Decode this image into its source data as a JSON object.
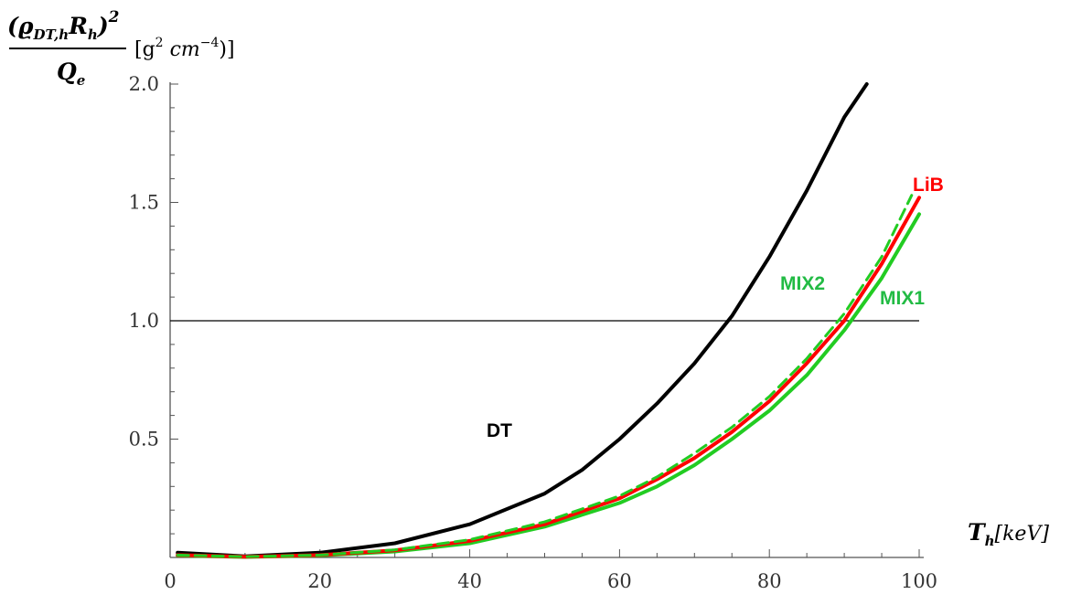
{
  "chart_data": {
    "type": "line",
    "xlabel": {
      "T": "T",
      "sub": "h",
      "unit": "[keV]"
    },
    "ylabel": {
      "rho": "(ϱ",
      "rho_sub": "DT,h",
      "R": "R",
      "R_sub": "h",
      "close": ")",
      "power": "2",
      "denom": "Q",
      "denom_sub": "e",
      "unit_open": "[g",
      "unit_pow": "2",
      "unit_mid": " cm",
      "unit_pow2": "−4",
      "unit_close": ")]"
    },
    "xlim": [
      0,
      100
    ],
    "ylim": [
      0,
      2.0
    ],
    "x_ticks": [
      0,
      20,
      40,
      60,
      80,
      100
    ],
    "x_tick_labels": [
      "0",
      "20",
      "40",
      "60",
      "80",
      "100"
    ],
    "y_ticks": [
      0.5,
      1.0,
      1.5,
      2.0
    ],
    "y_tick_labels": [
      "0.5",
      "1.0",
      "1.5",
      "2.0"
    ],
    "reference_line": {
      "y": 1.0,
      "x_range": [
        0,
        100
      ]
    },
    "series": [
      {
        "name": "DT",
        "color": "#000000",
        "dashed": false,
        "x": [
          1,
          10,
          20,
          30,
          40,
          50,
          55,
          60,
          65,
          70,
          75,
          80,
          85,
          90,
          93
        ],
        "y": [
          0.02,
          0.005,
          0.02,
          0.06,
          0.14,
          0.27,
          0.37,
          0.5,
          0.65,
          0.82,
          1.02,
          1.27,
          1.55,
          1.86,
          2.0
        ]
      },
      {
        "name": "LiB",
        "color": "#ff0000",
        "dashed": false,
        "x": [
          1,
          10,
          20,
          30,
          40,
          50,
          60,
          65,
          70,
          75,
          80,
          85,
          90,
          95,
          100
        ],
        "y": [
          0.01,
          0.003,
          0.01,
          0.03,
          0.07,
          0.14,
          0.25,
          0.33,
          0.42,
          0.53,
          0.66,
          0.82,
          1.0,
          1.24,
          1.52
        ]
      },
      {
        "name": "MIX1",
        "color": "#22cc22",
        "dashed": false,
        "x": [
          1,
          10,
          20,
          30,
          40,
          50,
          60,
          65,
          70,
          75,
          80,
          85,
          90,
          95,
          100
        ],
        "y": [
          0.008,
          0.002,
          0.008,
          0.025,
          0.06,
          0.13,
          0.23,
          0.3,
          0.39,
          0.5,
          0.62,
          0.77,
          0.96,
          1.18,
          1.45
        ]
      },
      {
        "name": "MIX2",
        "color": "#22cc22",
        "dashed": true,
        "x": [
          1,
          10,
          20,
          30,
          40,
          50,
          60,
          65,
          70,
          75,
          80,
          85,
          90,
          95,
          99
        ],
        "y": [
          0.01,
          0.003,
          0.01,
          0.032,
          0.075,
          0.15,
          0.26,
          0.34,
          0.44,
          0.55,
          0.68,
          0.84,
          1.03,
          1.27,
          1.53
        ]
      }
    ],
    "grid": false,
    "legend": "none"
  }
}
